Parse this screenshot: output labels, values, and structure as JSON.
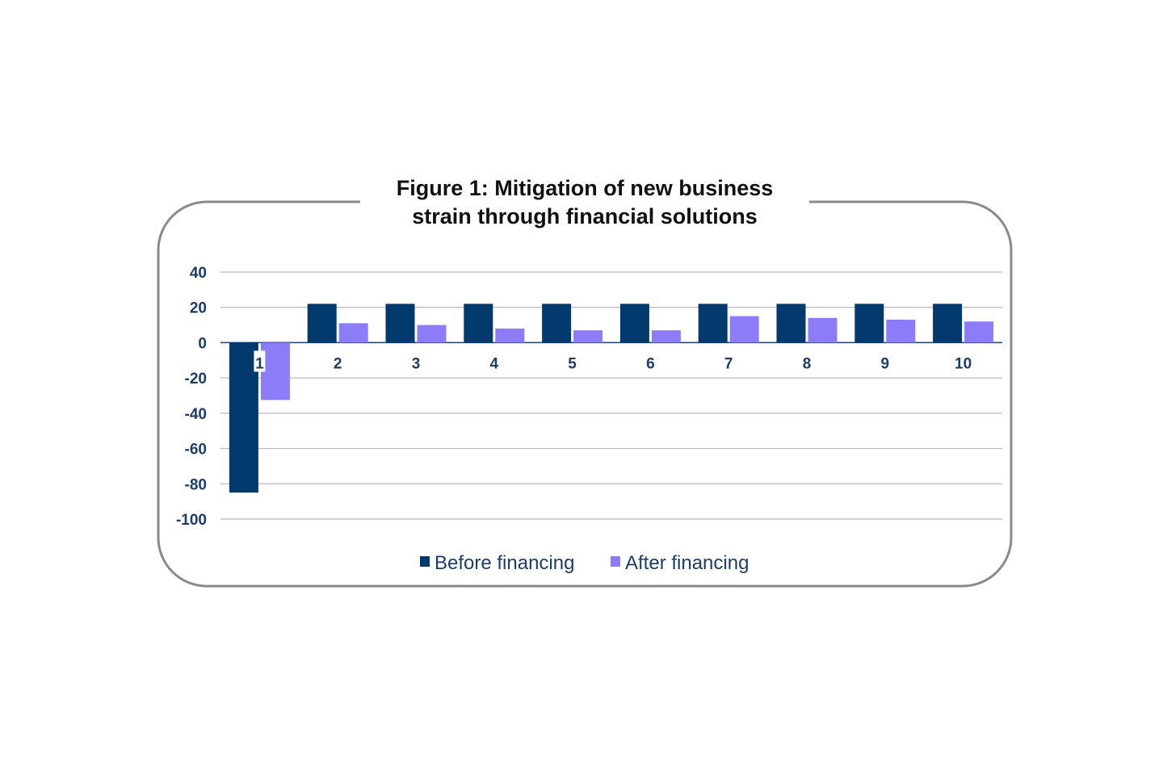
{
  "chart_data": {
    "type": "bar",
    "title_lines": [
      "Figure 1: Mitigation of new business",
      "strain through financial solutions"
    ],
    "categories": [
      "1",
      "2",
      "3",
      "4",
      "5",
      "6",
      "7",
      "8",
      "9",
      "10"
    ],
    "series": [
      {
        "name": "Before financing",
        "color": "#023a6e",
        "values": [
          -85,
          22,
          22,
          22,
          22,
          22,
          22,
          22,
          22,
          22
        ]
      },
      {
        "name": "After financing",
        "color": "#8c7cf8",
        "values": [
          -32.5,
          11,
          10,
          8,
          7,
          7,
          15,
          14,
          13,
          12
        ]
      }
    ],
    "y_ticks": [
      "40",
      "20",
      "0",
      "-20",
      "-40",
      "-60",
      "-80",
      "-100"
    ],
    "ylim": [
      -100,
      40
    ],
    "xlabel": "",
    "ylabel": "",
    "grid": true,
    "legend_position": "bottom-center",
    "axis_text_color": "#1b3d6b",
    "frame_color": "#8a8a8a",
    "grid_color": "#b8b8b8"
  }
}
